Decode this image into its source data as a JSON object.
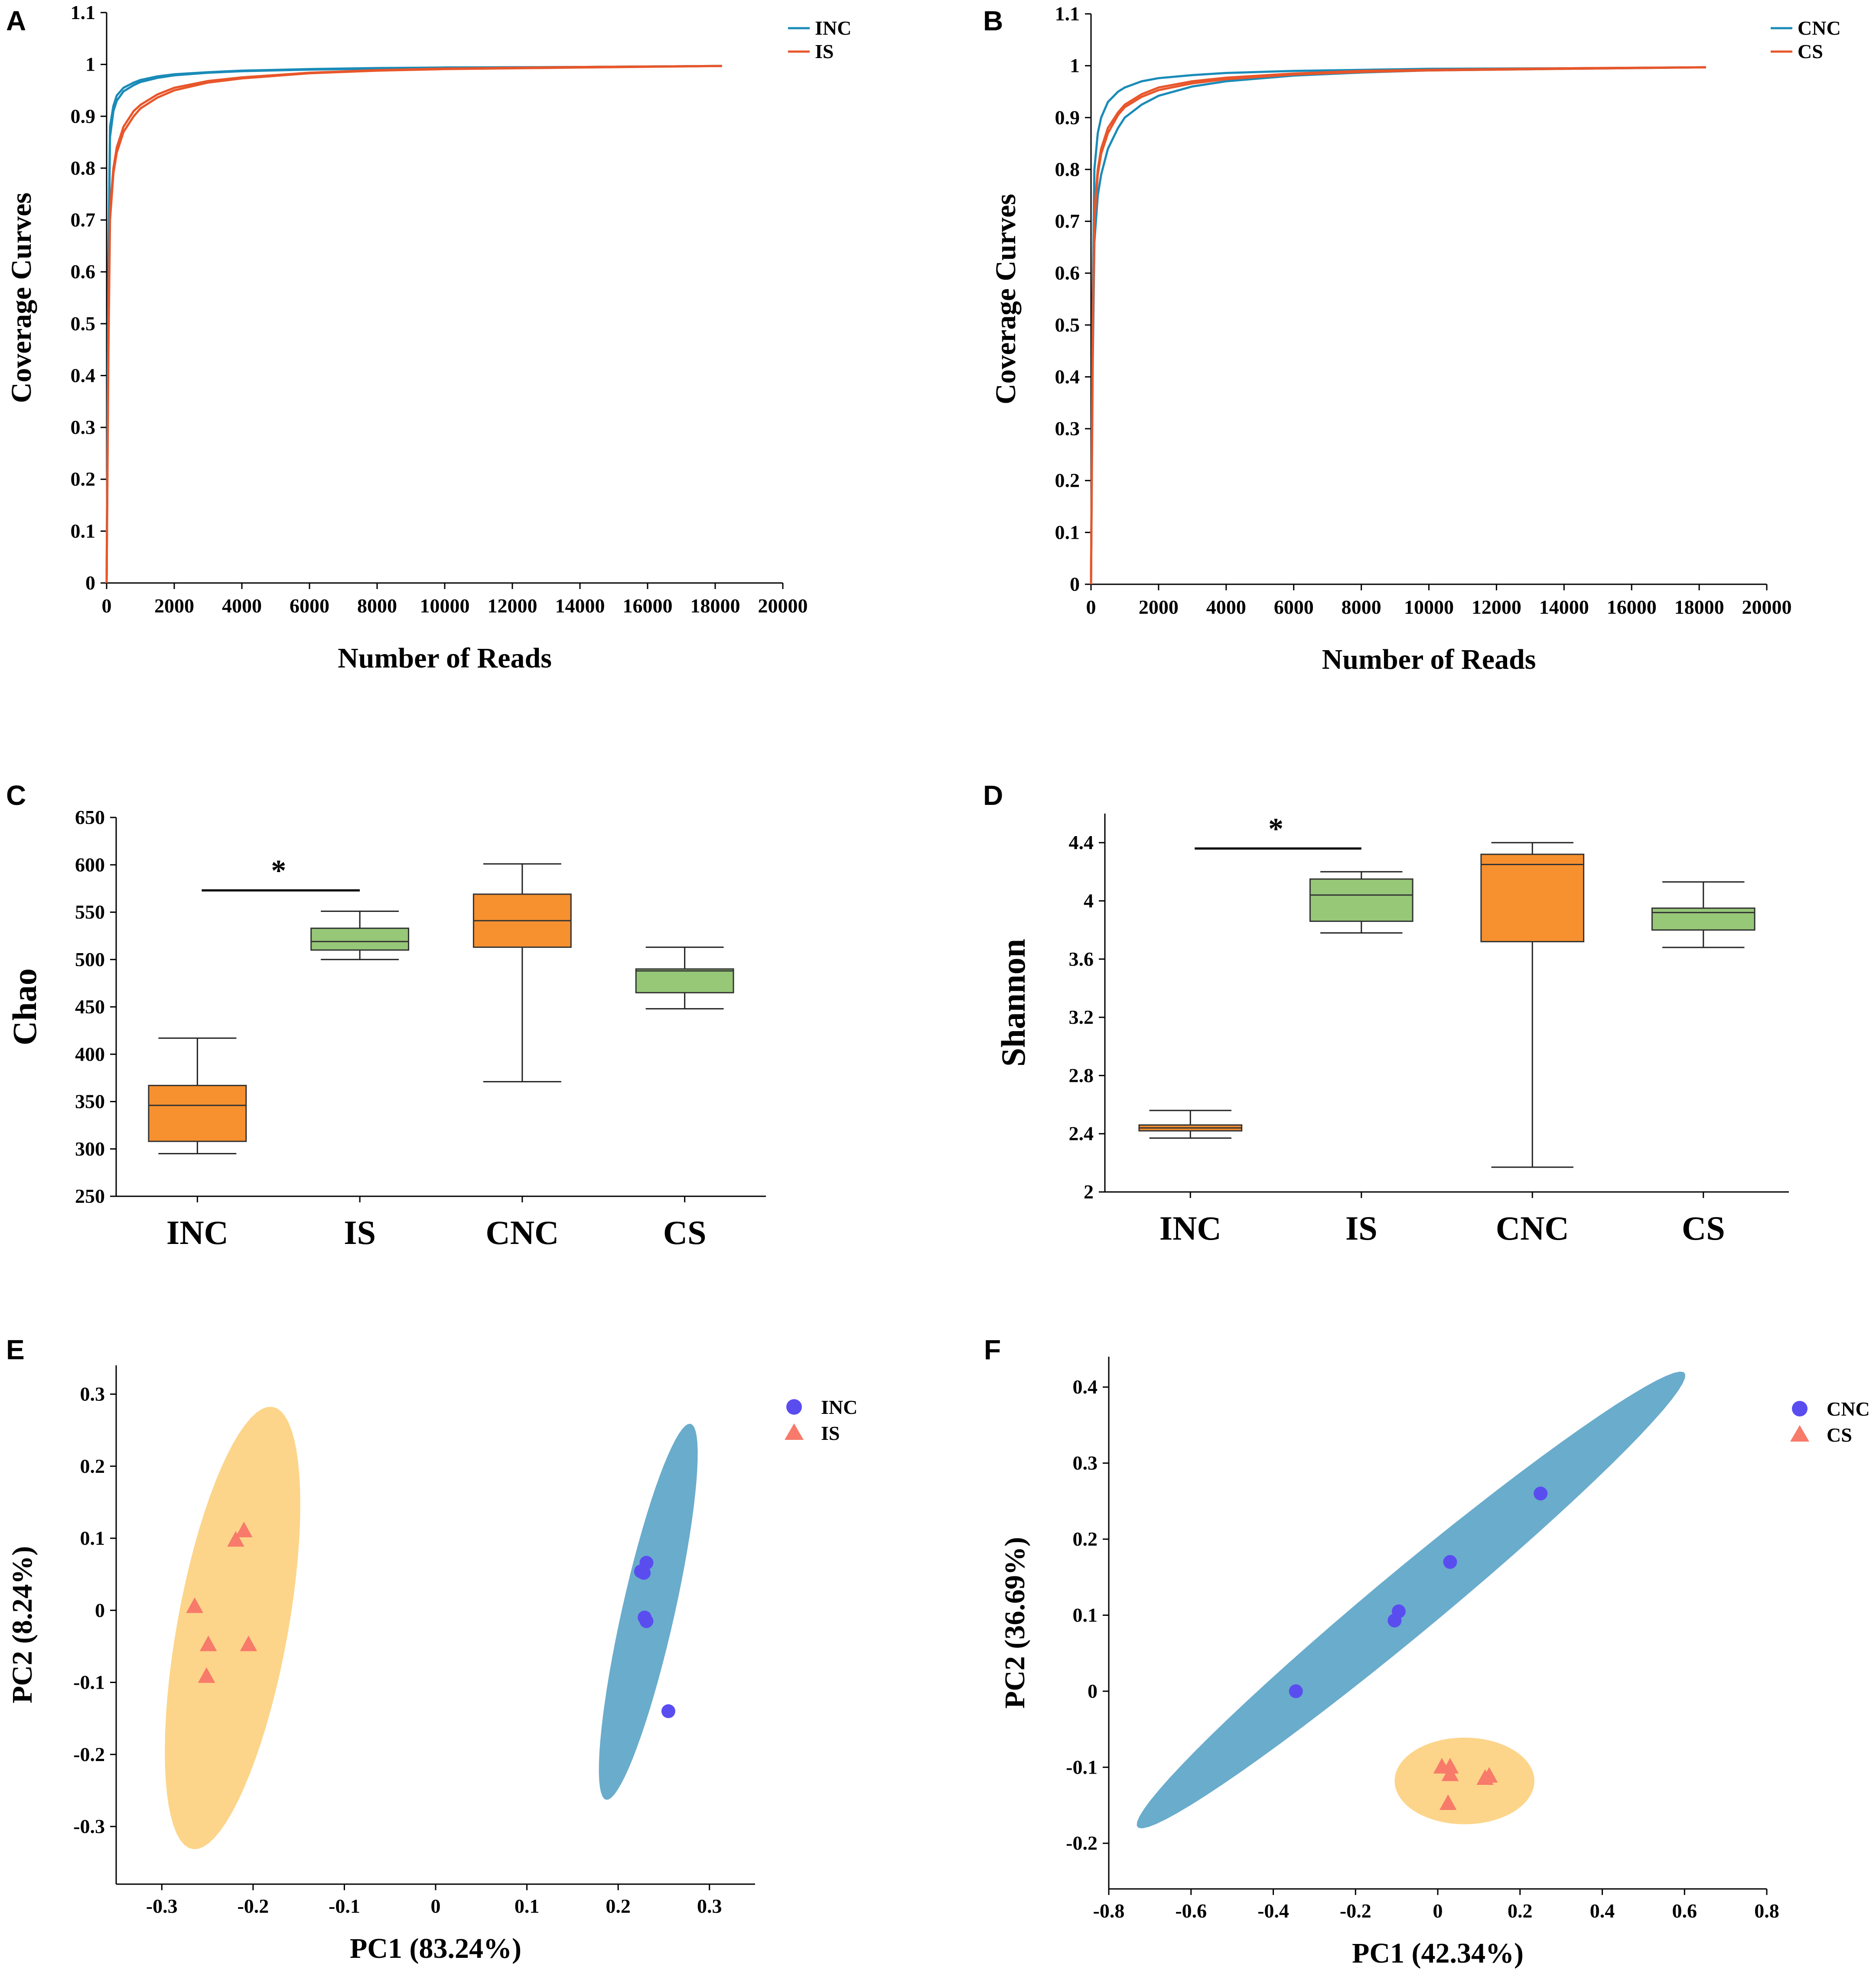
{
  "chart_data": [
    {
      "panel": "A",
      "type": "line",
      "title": "",
      "xlabel": "Number of Reads",
      "ylabel": "Coverage Curves",
      "xlim": [
        0,
        20000
      ],
      "ylim": [
        0,
        1.1
      ],
      "xticks": [
        "0",
        "2000",
        "4000",
        "6000",
        "8000",
        "10000",
        "12000",
        "14000",
        "16000",
        "18000",
        "20000"
      ],
      "yticks": [
        "0",
        "0.1",
        "0.2",
        "0.3",
        "0.4",
        "0.5",
        "0.6",
        "0.7",
        "0.8",
        "0.9",
        "1",
        "1.1"
      ],
      "legend": [
        {
          "name": "INC",
          "color": "#1a8bb8"
        },
        {
          "name": "IS",
          "color": "#e8562a"
        }
      ],
      "legend_position": "top-right",
      "series": [
        {
          "name": "INC",
          "color": "#1a8bb8",
          "x": [
            0,
            50,
            100,
            200,
            300,
            500,
            800,
            1000,
            1500,
            2000,
            3000,
            4000,
            6000,
            8000,
            10000,
            14000,
            18200
          ],
          "y": [
            0.0,
            0.6,
            0.88,
            0.92,
            0.94,
            0.955,
            0.965,
            0.97,
            0.977,
            0.981,
            0.985,
            0.988,
            0.991,
            0.993,
            0.994,
            0.995,
            0.997
          ]
        },
        {
          "name": "INC",
          "color": "#1a8bb8",
          "x": [
            0,
            50,
            100,
            200,
            300,
            500,
            800,
            1000,
            1500,
            2000,
            3000,
            4000,
            6000,
            8000,
            10000,
            14000,
            18200
          ],
          "y": [
            0.0,
            0.58,
            0.86,
            0.91,
            0.93,
            0.948,
            0.96,
            0.966,
            0.974,
            0.979,
            0.984,
            0.987,
            0.99,
            0.992,
            0.994,
            0.995,
            0.997
          ]
        },
        {
          "name": "IS",
          "color": "#e8562a",
          "x": [
            0,
            50,
            100,
            200,
            300,
            500,
            800,
            1000,
            1500,
            2000,
            3000,
            4000,
            6000,
            8000,
            10000,
            14000,
            18200
          ],
          "y": [
            0.0,
            0.45,
            0.72,
            0.8,
            0.84,
            0.88,
            0.91,
            0.922,
            0.942,
            0.955,
            0.968,
            0.975,
            0.984,
            0.989,
            0.992,
            0.995,
            0.997
          ]
        },
        {
          "name": "IS",
          "color": "#e8562a",
          "x": [
            0,
            50,
            100,
            200,
            300,
            500,
            800,
            1000,
            1500,
            2000,
            3000,
            4000,
            6000,
            8000,
            10000,
            14000,
            18200
          ],
          "y": [
            0.0,
            0.43,
            0.7,
            0.79,
            0.83,
            0.87,
            0.9,
            0.915,
            0.936,
            0.95,
            0.965,
            0.973,
            0.983,
            0.988,
            0.991,
            0.994,
            0.997
          ]
        }
      ]
    },
    {
      "panel": "B",
      "type": "line",
      "title": "",
      "xlabel": "Number of Reads",
      "ylabel": "Coverage Curves",
      "xlim": [
        0,
        20000
      ],
      "ylim": [
        0,
        1.1
      ],
      "xticks": [
        "0",
        "2000",
        "4000",
        "6000",
        "8000",
        "10000",
        "12000",
        "14000",
        "16000",
        "18000",
        "20000"
      ],
      "yticks": [
        "0",
        "0.1",
        "0.2",
        "0.3",
        "0.4",
        "0.5",
        "0.6",
        "0.7",
        "0.8",
        "0.9",
        "1",
        "1.1"
      ],
      "legend": [
        {
          "name": "CNC",
          "color": "#1a8bb8"
        },
        {
          "name": "CS",
          "color": "#e8562a"
        }
      ],
      "legend_position": "top-right",
      "series": [
        {
          "name": "CNC",
          "color": "#1a8bb8",
          "x": [
            0,
            50,
            100,
            200,
            300,
            500,
            800,
            1000,
            1500,
            2000,
            3000,
            4000,
            6000,
            8000,
            10000,
            14000,
            18200
          ],
          "y": [
            0.0,
            0.42,
            0.66,
            0.75,
            0.79,
            0.84,
            0.88,
            0.9,
            0.925,
            0.942,
            0.96,
            0.97,
            0.981,
            0.987,
            0.991,
            0.994,
            0.997
          ]
        },
        {
          "name": "CNC",
          "color": "#1a8bb8",
          "x": [
            0,
            50,
            100,
            200,
            300,
            500,
            800,
            1000,
            1500,
            2000,
            3000,
            4000,
            6000,
            8000,
            10000,
            14000,
            18200
          ],
          "y": [
            0.0,
            0.55,
            0.8,
            0.87,
            0.9,
            0.93,
            0.95,
            0.958,
            0.97,
            0.976,
            0.982,
            0.986,
            0.99,
            0.992,
            0.994,
            0.995,
            0.997
          ]
        },
        {
          "name": "CS",
          "color": "#e8562a",
          "x": [
            0,
            50,
            100,
            200,
            300,
            500,
            800,
            1000,
            1500,
            2000,
            3000,
            4000,
            6000,
            8000,
            10000,
            14000,
            18200
          ],
          "y": [
            0.0,
            0.48,
            0.72,
            0.8,
            0.84,
            0.88,
            0.91,
            0.925,
            0.945,
            0.958,
            0.97,
            0.977,
            0.985,
            0.99,
            0.992,
            0.995,
            0.997
          ]
        },
        {
          "name": "CS",
          "color": "#e8562a",
          "x": [
            0,
            50,
            100,
            200,
            300,
            500,
            800,
            1000,
            1500,
            2000,
            3000,
            4000,
            6000,
            8000,
            10000,
            14000,
            18200
          ],
          "y": [
            0.0,
            0.46,
            0.7,
            0.79,
            0.83,
            0.87,
            0.905,
            0.92,
            0.94,
            0.953,
            0.966,
            0.974,
            0.983,
            0.988,
            0.991,
            0.994,
            0.997
          ]
        }
      ]
    },
    {
      "panel": "C",
      "type": "box",
      "title": "",
      "xlabel": "",
      "ylabel": "Chao",
      "ylim": [
        250,
        650
      ],
      "yticks": [
        "250",
        "300",
        "350",
        "400",
        "450",
        "500",
        "550",
        "600",
        "650"
      ],
      "categories": [
        "INC",
        "IS",
        "CNC",
        "CS"
      ],
      "boxes": [
        {
          "label": "INC",
          "min": 295,
          "q1": 308,
          "median": 346,
          "q3": 367,
          "max": 417,
          "color": "#f7902f"
        },
        {
          "label": "IS",
          "min": 500,
          "q1": 510,
          "median": 519,
          "q3": 533,
          "max": 551,
          "color": "#96c878"
        },
        {
          "label": "CNC",
          "min": 371,
          "q1": 513,
          "median": 541,
          "q3": 569,
          "max": 601,
          "color": "#f7902f"
        },
        {
          "label": "CS",
          "min": 448,
          "q1": 465,
          "median": 488,
          "q3": 490,
          "max": 513,
          "color": "#96c878"
        }
      ],
      "significance": {
        "from": "INC",
        "to": "IS",
        "symbol": "*",
        "level": 573
      }
    },
    {
      "panel": "D",
      "type": "box",
      "title": "",
      "xlabel": "",
      "ylabel": "Shannon",
      "ylim": [
        2,
        4.6
      ],
      "yticks": [
        "2",
        "2.4",
        "2.8",
        "3.2",
        "3.6",
        "4",
        "4.4"
      ],
      "categories": [
        "INC",
        "IS",
        "CNC",
        "CS"
      ],
      "boxes": [
        {
          "label": "INC",
          "min": 2.37,
          "q1": 2.42,
          "median": 2.44,
          "q3": 2.46,
          "max": 2.56,
          "color": "#f7902f"
        },
        {
          "label": "IS",
          "min": 3.78,
          "q1": 3.86,
          "median": 4.04,
          "q3": 4.15,
          "max": 4.2,
          "color": "#96c878"
        },
        {
          "label": "CNC",
          "min": 2.17,
          "q1": 3.72,
          "median": 4.25,
          "q3": 4.32,
          "max": 4.4,
          "color": "#f7902f"
        },
        {
          "label": "CS",
          "min": 3.68,
          "q1": 3.8,
          "median": 3.92,
          "q3": 3.95,
          "max": 4.13,
          "color": "#96c878"
        }
      ],
      "significance": {
        "from": "INC",
        "to": "IS",
        "symbol": "*",
        "level": 4.36
      }
    },
    {
      "panel": "E",
      "type": "scatter",
      "title": "",
      "xlabel": "PC1 (83.24%)",
      "ylabel": "PC2 (8.24%)",
      "xlim": [
        -0.35,
        0.35
      ],
      "ylim": [
        -0.38,
        0.34
      ],
      "xticks": [
        "-0.3",
        "-0.2",
        "-0.1",
        "0",
        "0.1",
        "0.2",
        "0.3"
      ],
      "yticks": [
        "-0.3",
        "-0.2",
        "-0.1",
        "0",
        "0.1",
        "0.2",
        "0.3"
      ],
      "legend": [
        {
          "name": "INC",
          "marker": "circle",
          "color": "#5a4df0"
        },
        {
          "name": "IS",
          "marker": "triangle",
          "color": "#f77a6a"
        }
      ],
      "legend_position": "top-right",
      "series": [
        {
          "name": "INC",
          "marker": "circle",
          "color": "#5a4df0",
          "x": [
            0.225,
            0.231,
            0.228,
            0.231,
            0.229,
            0.255
          ],
          "y": [
            0.054,
            0.066,
            0.052,
            -0.015,
            -0.01,
            -0.14
          ],
          "ellipse": {
            "cx": 0.233,
            "cy": -0.002,
            "rx": 0.265,
            "ry": 0.029,
            "angle_deg": 80,
            "color": "#6aaccc"
          }
        },
        {
          "name": "IS",
          "marker": "triangle",
          "color": "#f77a6a",
          "x": [
            -0.21,
            -0.219,
            -0.264,
            -0.249,
            -0.205,
            -0.251
          ],
          "y": [
            0.11,
            0.097,
            0.005,
            -0.048,
            -0.048,
            -0.092
          ],
          "ellipse": {
            "cx": -0.2225,
            "cy": -0.0245,
            "rx": 0.31,
            "ry": 0.061,
            "angle_deg": 82,
            "color": "#fcd58a"
          }
        }
      ]
    },
    {
      "panel": "F",
      "type": "scatter",
      "title": "",
      "xlabel": "PC1 (42.34%)",
      "ylabel": "PC2 (36.69%)",
      "xlim": [
        -0.8,
        0.8
      ],
      "ylim": [
        -0.26,
        0.44
      ],
      "xticks": [
        "-0.8",
        "-0.6",
        "-0.4",
        "-0.2",
        "0",
        "0.2",
        "0.4",
        "0.6",
        "0.8"
      ],
      "yticks": [
        "-0.2",
        "-0.1",
        "0",
        "0.1",
        "0.2",
        "0.3",
        "0.4"
      ],
      "legend": [
        {
          "name": "CNC",
          "marker": "circle",
          "color": "#5a4df0"
        },
        {
          "name": "CS",
          "marker": "triangle",
          "color": "#f77a6a"
        }
      ],
      "legend_position": "top-right",
      "series": [
        {
          "name": "CNC",
          "marker": "circle",
          "color": "#5a4df0",
          "x": [
            0.25,
            0.03,
            -0.095,
            -0.105,
            -0.345
          ],
          "y": [
            0.26,
            0.17,
            0.105,
            0.093,
            0.0
          ],
          "ellipse": {
            "cx": -0.065,
            "cy": 0.12,
            "rx": 0.73,
            "ry": 0.05,
            "angle_deg": 24,
            "color": "#6aaccc"
          }
        },
        {
          "name": "CS",
          "marker": "triangle",
          "color": "#f77a6a",
          "x": [
            0.01,
            0.03,
            0.03,
            0.115,
            0.125,
            0.025
          ],
          "y": [
            -0.1,
            -0.1,
            -0.11,
            -0.115,
            -0.112,
            -0.148
          ],
          "ellipse": {
            "cx": 0.065,
            "cy": -0.118,
            "rx": 0.17,
            "ry": 0.057,
            "angle_deg": 0,
            "color": "#fcd58a"
          }
        }
      ]
    }
  ]
}
